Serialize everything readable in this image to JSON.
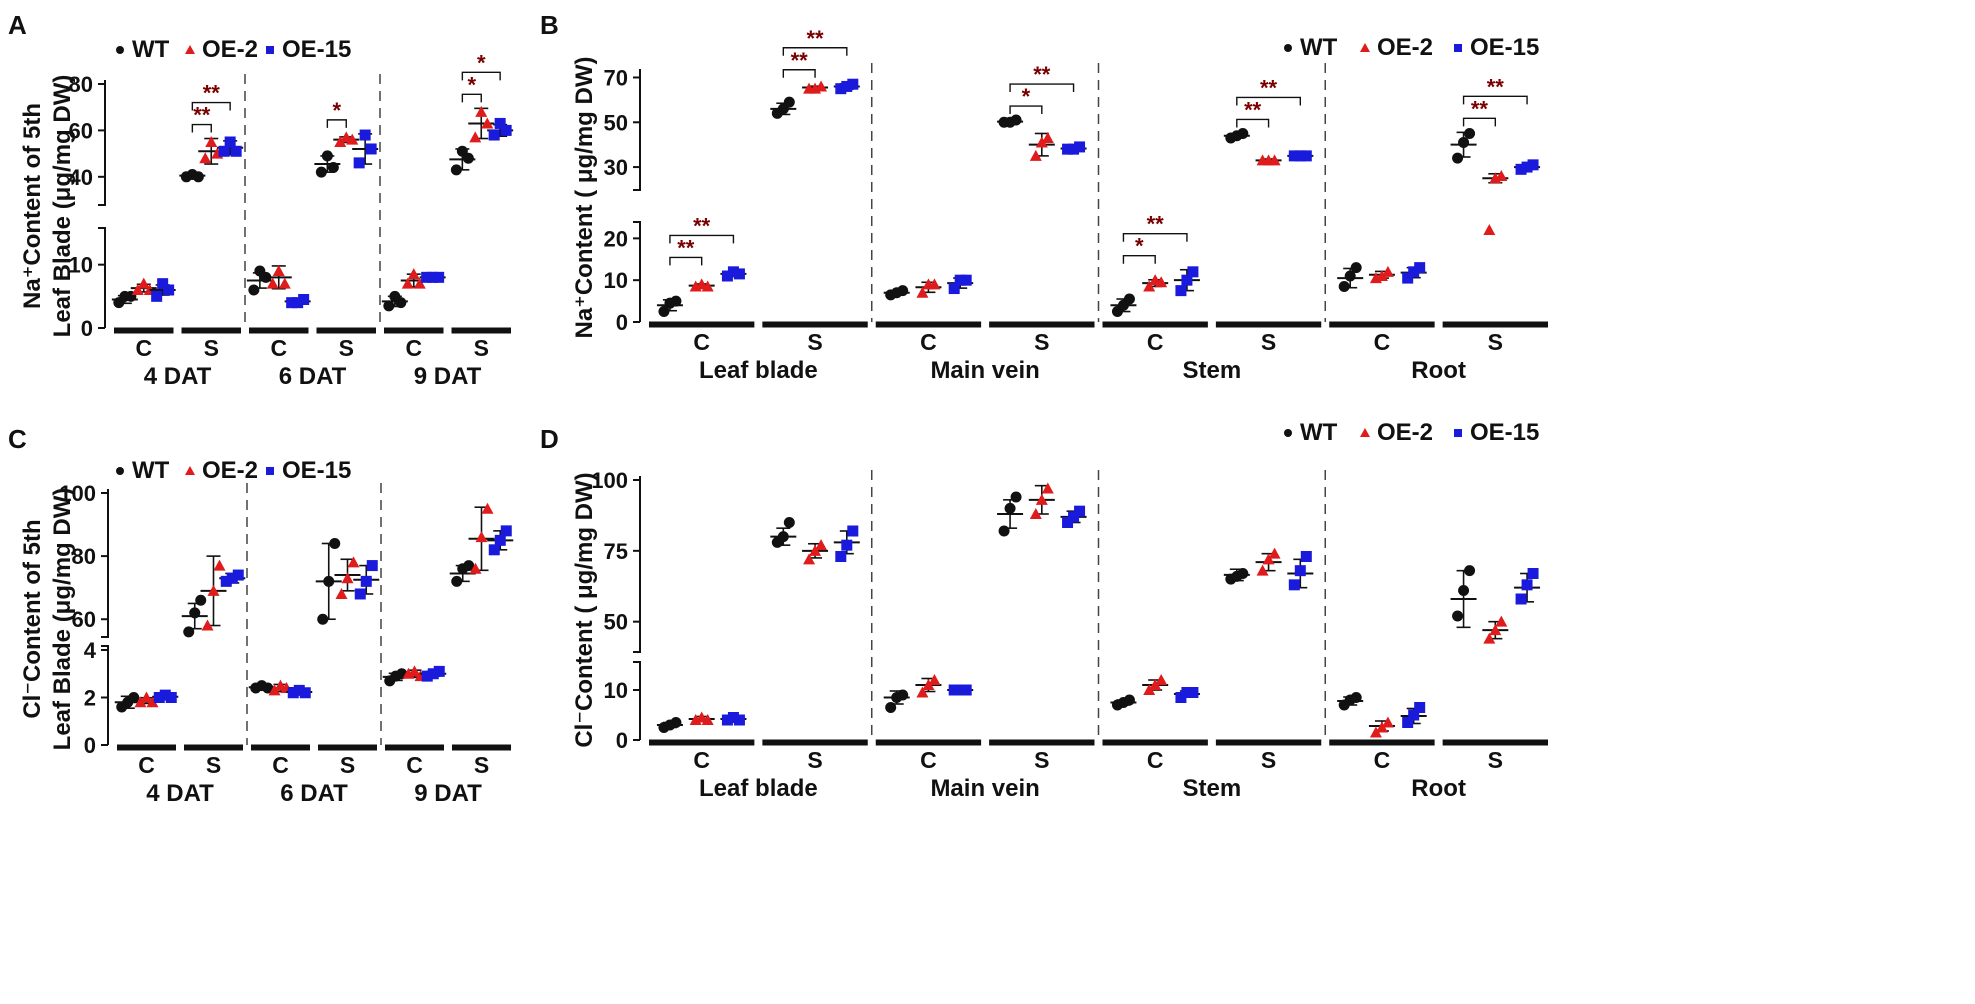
{
  "colors": {
    "WT": "#111111",
    "OE-2": "#e01b1b",
    "OE-15": "#1a1adc",
    "sig": "#7a0000"
  },
  "chart_data": [
    {
      "id": "A",
      "type": "scatter",
      "letter": "A",
      "ylabel_1": "Na⁺Content of 5th",
      "ylabel_2": "Leaf Blade (μg/mg DW)",
      "legend": [
        "WT",
        "OE-2",
        "OE-15"
      ],
      "y_lower": {
        "range": [
          0,
          15
        ],
        "ticks": [
          0,
          10
        ]
      },
      "y_upper": {
        "range": [
          30,
          80
        ],
        "ticks": [
          40,
          60,
          80
        ]
      },
      "groups": [
        "4 DAT",
        "6 DAT",
        "9 DAT"
      ],
      "conditions": [
        "C",
        "S"
      ],
      "series": [
        {
          "group": "4 DAT",
          "cond": "C",
          "WT": [
            4.0,
            5.0,
            5.0
          ],
          "OE-2": [
            6.0,
            7.0,
            6.0
          ],
          "OE-15": [
            5.0,
            7.0,
            6.0
          ],
          "mean": [
            4.5,
            6.3,
            6.0
          ],
          "sd": [
            0.6,
            0.6,
            0.8
          ]
        },
        {
          "group": "4 DAT",
          "cond": "S",
          "WT": [
            40,
            41,
            40
          ],
          "OE-2": [
            48,
            55,
            50
          ],
          "OE-15": [
            51,
            55,
            51
          ],
          "mean": [
            40.5,
            51,
            52.5
          ],
          "sd": [
            1.0,
            5.5,
            3.0
          ]
        },
        {
          "group": "6 DAT",
          "cond": "C",
          "WT": [
            6.0,
            9.0,
            8.0
          ],
          "OE-2": [
            7.0,
            9.0,
            7.0
          ],
          "OE-15": [
            4.0,
            4.0,
            4.5
          ],
          "mean": [
            7.5,
            8.0,
            4.2
          ],
          "sd": [
            1.2,
            1.8,
            0.4
          ]
        },
        {
          "group": "6 DAT",
          "cond": "S",
          "WT": [
            42,
            49,
            44
          ],
          "OE-2": [
            55,
            57,
            56
          ],
          "OE-15": [
            46,
            58,
            52
          ],
          "mean": [
            45.5,
            56,
            52
          ],
          "sd": [
            3.5,
            1.2,
            6.5
          ]
        },
        {
          "group": "9 DAT",
          "cond": "C",
          "WT": [
            3.5,
            5.0,
            4.0
          ],
          "OE-2": [
            7.0,
            8.5,
            7.0
          ],
          "OE-15": [
            8.0,
            8.0,
            8.0
          ],
          "mean": [
            4.2,
            7.5,
            8.0
          ],
          "sd": [
            0.8,
            1.0,
            0.2
          ]
        },
        {
          "group": "9 DAT",
          "cond": "S",
          "WT": [
            43,
            51,
            48
          ],
          "OE-2": [
            57,
            68,
            63
          ],
          "OE-15": [
            58,
            63,
            60
          ],
          "mean": [
            47.5,
            63,
            60
          ],
          "sd": [
            4.5,
            6.5,
            2.5
          ]
        }
      ],
      "significance": [
        {
          "group": "4 DAT",
          "cond": "S",
          "from": "WT",
          "to": "OE-2",
          "label": "**"
        },
        {
          "group": "4 DAT",
          "cond": "S",
          "from": "WT",
          "to": "OE-15",
          "label": "**"
        },
        {
          "group": "6 DAT",
          "cond": "S",
          "from": "WT",
          "to": "OE-2",
          "label": "*"
        },
        {
          "group": "9 DAT",
          "cond": "S",
          "from": "WT",
          "to": "OE-2",
          "label": "*"
        },
        {
          "group": "9 DAT",
          "cond": "S",
          "from": "WT",
          "to": "OE-15",
          "label": "*"
        }
      ]
    },
    {
      "id": "B",
      "type": "scatter",
      "letter": "B",
      "ylabel_1": "Na⁺Content ( μg/mg DW)",
      "legend": [
        "WT",
        "OE-2",
        "OE-15"
      ],
      "y_lower": {
        "range": [
          0,
          22
        ],
        "ticks": [
          0,
          10,
          20
        ]
      },
      "y_upper": {
        "range": [
          22,
          72
        ],
        "ticks": [
          30,
          50,
          70
        ]
      },
      "groups": [
        "Leaf blade",
        "Main vein",
        "Stem",
        "Root"
      ],
      "conditions": [
        "C",
        "S"
      ],
      "series": [
        {
          "group": "Leaf blade",
          "cond": "C",
          "WT": [
            2.5,
            4.5,
            5.0
          ],
          "OE-2": [
            8.5,
            9.0,
            8.5
          ],
          "OE-15": [
            11,
            12,
            11.5
          ],
          "mean": [
            4.0,
            8.7,
            11.5
          ],
          "sd": [
            1.3,
            0.4,
            0.6
          ]
        },
        {
          "group": "Leaf blade",
          "cond": "S",
          "WT": [
            54,
            56,
            59
          ],
          "OE-2": [
            65,
            65,
            66
          ],
          "OE-15": [
            65,
            66,
            67
          ],
          "mean": [
            56,
            65.5,
            66
          ],
          "sd": [
            2.5,
            0.6,
            1.2
          ]
        },
        {
          "group": "Main vein",
          "cond": "C",
          "WT": [
            6.5,
            7.0,
            7.5
          ],
          "OE-2": [
            7.0,
            9.0,
            9.0
          ],
          "OE-15": [
            8.0,
            10,
            10
          ],
          "mean": [
            7.0,
            8.3,
            9.3
          ],
          "sd": [
            0.5,
            1.2,
            1.2
          ]
        },
        {
          "group": "Main vein",
          "cond": "S",
          "WT": [
            50,
            50,
            51
          ],
          "OE-2": [
            35,
            41,
            43
          ],
          "OE-15": [
            38,
            38,
            39
          ],
          "mean": [
            50.3,
            40,
            38.3
          ],
          "sd": [
            0.6,
            5.0,
            0.6
          ]
        },
        {
          "group": "Stem",
          "cond": "C",
          "WT": [
            2.5,
            4.0,
            5.5
          ],
          "OE-2": [
            8.5,
            10,
            9.5
          ],
          "OE-15": [
            7.5,
            10,
            12
          ],
          "mean": [
            4.0,
            9.3,
            10
          ],
          "sd": [
            1.5,
            0.8,
            2.5
          ]
        },
        {
          "group": "Stem",
          "cond": "S",
          "WT": [
            43,
            44,
            45
          ],
          "OE-2": [
            33,
            33,
            33
          ],
          "OE-15": [
            35,
            35,
            35
          ],
          "mean": [
            44,
            33,
            35
          ],
          "sd": [
            1.0,
            0.6,
            0.4
          ]
        },
        {
          "group": "Root",
          "cond": "C",
          "WT": [
            8.5,
            11,
            13
          ],
          "OE-2": [
            10.5,
            11,
            12
          ],
          "OE-15": [
            10.5,
            12,
            13
          ],
          "mean": [
            10.5,
            11.3,
            11.8
          ],
          "sd": [
            2.3,
            0.8,
            1.2
          ]
        },
        {
          "group": "Root",
          "cond": "S",
          "WT": [
            34,
            41,
            45
          ],
          "OE-2": [
            22,
            25,
            26
          ],
          "OE-15": [
            29,
            30,
            31
          ],
          "mean": [
            40,
            25,
            30
          ],
          "sd": [
            5.5,
            2.0,
            1.0
          ]
        }
      ],
      "significance": [
        {
          "group": "Leaf blade",
          "cond": "C",
          "from": "WT",
          "to": "OE-2",
          "label": "**"
        },
        {
          "group": "Leaf blade",
          "cond": "C",
          "from": "WT",
          "to": "OE-15",
          "label": "**"
        },
        {
          "group": "Leaf blade",
          "cond": "S",
          "from": "WT",
          "to": "OE-2",
          "label": "**"
        },
        {
          "group": "Leaf blade",
          "cond": "S",
          "from": "WT",
          "to": "OE-15",
          "label": "**"
        },
        {
          "group": "Main vein",
          "cond": "S",
          "from": "WT",
          "to": "OE-2",
          "label": "*"
        },
        {
          "group": "Main vein",
          "cond": "S",
          "from": "WT",
          "to": "OE-15",
          "label": "**"
        },
        {
          "group": "Stem",
          "cond": "C",
          "from": "WT",
          "to": "OE-2",
          "label": "*"
        },
        {
          "group": "Stem",
          "cond": "C",
          "from": "WT",
          "to": "OE-15",
          "label": "**"
        },
        {
          "group": "Stem",
          "cond": "S",
          "from": "WT",
          "to": "OE-2",
          "label": "**"
        },
        {
          "group": "Stem",
          "cond": "S",
          "from": "WT",
          "to": "OE-15",
          "label": "**"
        },
        {
          "group": "Root",
          "cond": "S",
          "from": "WT",
          "to": "OE-2",
          "label": "**"
        },
        {
          "group": "Root",
          "cond": "S",
          "from": "WT",
          "to": "OE-15",
          "label": "**"
        }
      ]
    },
    {
      "id": "C",
      "type": "scatter",
      "letter": "C",
      "ylabel_1": "Cl⁻Content of 5th",
      "ylabel_2": "Leaf Blade (μg/mg DW)",
      "legend": [
        "WT",
        "OE-2",
        "OE-15"
      ],
      "y_lower": {
        "range": [
          0,
          4
        ],
        "ticks": [
          0,
          2,
          4
        ]
      },
      "y_upper": {
        "range": [
          55,
          100
        ],
        "ticks": [
          60,
          80,
          100
        ]
      },
      "groups": [
        "4 DAT",
        "6 DAT",
        "9 DAT"
      ],
      "conditions": [
        "C",
        "S"
      ],
      "series": [
        {
          "group": "4 DAT",
          "cond": "C",
          "WT": [
            1.6,
            1.8,
            2.0
          ],
          "OE-2": [
            1.8,
            2.0,
            1.8
          ],
          "OE-15": [
            2.0,
            2.1,
            2.0
          ],
          "mean": [
            1.8,
            1.87,
            2.03
          ],
          "sd": [
            0.25,
            0.12,
            0.06
          ]
        },
        {
          "group": "4 DAT",
          "cond": "S",
          "WT": [
            56,
            62,
            66
          ],
          "OE-2": [
            58,
            69,
            77
          ],
          "OE-15": [
            72,
            73,
            74
          ],
          "mean": [
            61,
            69,
            73
          ],
          "sd": [
            4.0,
            11,
            1.5
          ]
        },
        {
          "group": "6 DAT",
          "cond": "C",
          "WT": [
            2.4,
            2.5,
            2.4
          ],
          "OE-2": [
            2.3,
            2.5,
            2.4
          ],
          "OE-15": [
            2.2,
            2.3,
            2.2
          ],
          "mean": [
            2.43,
            2.4,
            2.23
          ],
          "sd": [
            0.1,
            0.15,
            0.06
          ]
        },
        {
          "group": "6 DAT",
          "cond": "S",
          "WT": [
            60,
            72,
            84
          ],
          "OE-2": [
            68,
            73,
            78
          ],
          "OE-15": [
            68,
            72,
            77
          ],
          "mean": [
            72,
            74,
            72.5
          ],
          "sd": [
            12,
            5,
            4.5
          ]
        },
        {
          "group": "9 DAT",
          "cond": "C",
          "WT": [
            2.7,
            2.9,
            3.0
          ],
          "OE-2": [
            3.0,
            3.1,
            2.9
          ],
          "OE-15": [
            2.9,
            3.0,
            3.1
          ],
          "mean": [
            2.87,
            3.0,
            3.0
          ],
          "sd": [
            0.15,
            0.15,
            0.1
          ]
        },
        {
          "group": "9 DAT",
          "cond": "S",
          "WT": [
            72,
            76,
            77
          ],
          "OE-2": [
            76,
            86,
            95
          ],
          "OE-15": [
            82,
            85,
            88
          ],
          "mean": [
            74.5,
            85.5,
            85
          ],
          "sd": [
            2.5,
            10,
            3.0
          ]
        }
      ],
      "significance": []
    },
    {
      "id": "D",
      "type": "scatter",
      "letter": "D",
      "ylabel_1": "Cl⁻Content ( μg/mg  DW)",
      "legend": [
        "WT",
        "OE-2",
        "OE-15"
      ],
      "y_lower": {
        "range": [
          0,
          15
        ],
        "ticks": [
          0,
          10
        ]
      },
      "y_upper": {
        "range": [
          40,
          100
        ],
        "ticks": [
          50,
          75,
          100
        ]
      },
      "groups": [
        "Leaf blade",
        "Main vein",
        "Stem",
        "Root"
      ],
      "conditions": [
        "C",
        "S"
      ],
      "series": [
        {
          "group": "Leaf blade",
          "cond": "C",
          "WT": [
            2.5,
            3.0,
            3.5
          ],
          "OE-2": [
            4.0,
            4.5,
            4.0
          ],
          "OE-15": [
            4.0,
            4.5,
            4.0
          ],
          "mean": [
            3.0,
            4.2,
            4.2
          ],
          "sd": [
            0.5,
            0.5,
            0.4
          ]
        },
        {
          "group": "Leaf blade",
          "cond": "S",
          "WT": [
            78,
            80,
            85
          ],
          "OE-2": [
            72,
            75,
            77
          ],
          "OE-15": [
            73,
            77,
            82
          ],
          "mean": [
            80,
            75,
            78
          ],
          "sd": [
            3,
            2.5,
            4
          ]
        },
        {
          "group": "Main vein",
          "cond": "C",
          "WT": [
            6.5,
            8.5,
            9.0
          ],
          "OE-2": [
            9.5,
            11,
            12
          ],
          "OE-15": [
            10,
            10,
            10
          ],
          "mean": [
            8.5,
            11,
            10
          ],
          "sd": [
            1.3,
            1.3,
            0.4
          ]
        },
        {
          "group": "Main vein",
          "cond": "S",
          "WT": [
            82,
            90,
            94
          ],
          "OE-2": [
            88,
            93,
            97
          ],
          "OE-15": [
            85,
            87,
            89
          ],
          "mean": [
            88,
            93,
            87
          ],
          "sd": [
            5,
            5,
            2
          ]
        },
        {
          "group": "Stem",
          "cond": "C",
          "WT": [
            7.0,
            7.5,
            8.0
          ],
          "OE-2": [
            10,
            11,
            12
          ],
          "OE-15": [
            8.5,
            9.5,
            9.5
          ],
          "mean": [
            7.5,
            11,
            9.2
          ],
          "sd": [
            0.5,
            1.0,
            0.6
          ]
        },
        {
          "group": "Stem",
          "cond": "S",
          "WT": [
            65,
            66,
            67
          ],
          "OE-2": [
            68,
            72,
            74
          ],
          "OE-15": [
            63,
            68,
            73
          ],
          "mean": [
            66.5,
            71,
            67
          ],
          "sd": [
            2,
            3,
            5
          ]
        },
        {
          "group": "Root",
          "cond": "C",
          "WT": [
            7.0,
            8.0,
            8.5
          ],
          "OE-2": [
            1.5,
            2.5,
            3.5
          ],
          "OE-15": [
            3.5,
            5,
            6.5
          ],
          "mean": [
            7.8,
            2.8,
            4.8
          ],
          "sd": [
            0.8,
            1.0,
            1.5
          ]
        },
        {
          "group": "Root",
          "cond": "S",
          "WT": [
            52,
            61,
            68
          ],
          "OE-2": [
            44,
            47,
            50
          ],
          "OE-15": [
            58,
            63,
            67
          ],
          "mean": [
            58,
            47,
            62
          ],
          "sd": [
            10,
            3,
            5
          ]
        }
      ],
      "significance": []
    }
  ]
}
